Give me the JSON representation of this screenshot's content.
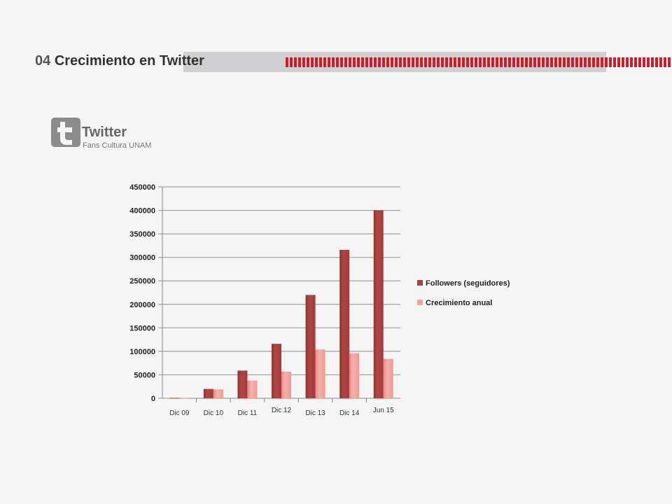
{
  "header": {
    "number": "04",
    "title": "Crecimiento en Twitter"
  },
  "brand": {
    "title": "Twitter",
    "subtitle": "Fans Cultura UNAM",
    "logo_icon": "twitter-t-icon"
  },
  "colors": {
    "accent": "#c8202a",
    "series1": "#a8403e",
    "series2": "#f2a29e"
  },
  "chart_data": {
    "type": "bar",
    "categories": [
      "Dic 09",
      "Dic 10",
      "Dic 11",
      "Dic 12",
      "Dic 13",
      "Dic 14",
      "Jun 15"
    ],
    "series": [
      {
        "name": "Followers (seguidores)",
        "values": [
          800,
          20000,
          59000,
          116000,
          220000,
          316000,
          400000
        ]
      },
      {
        "name": "Crecimiento anual",
        "values": [
          800,
          19000,
          38000,
          57000,
          104000,
          96000,
          84000
        ]
      }
    ],
    "ylim": [
      0,
      450000
    ],
    "yticks": [
      0,
      50000,
      100000,
      150000,
      200000,
      250000,
      300000,
      350000,
      400000,
      450000
    ],
    "grid": true,
    "legend": "right"
  }
}
